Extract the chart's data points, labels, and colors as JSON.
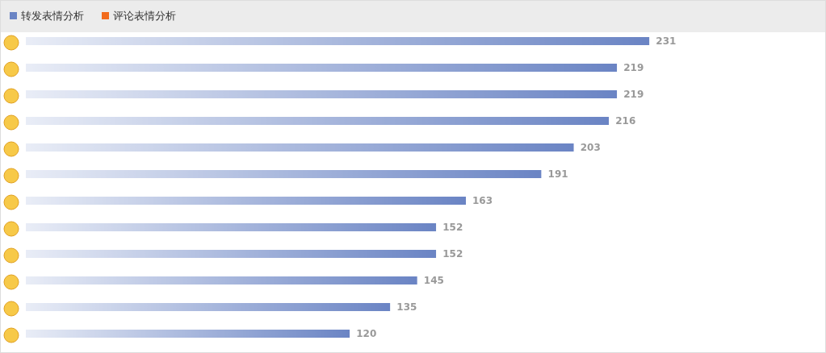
{
  "chart_data": {
    "type": "bar",
    "orientation": "horizontal",
    "categories": [
      null,
      null,
      null,
      null,
      null,
      null,
      null,
      null,
      null,
      null,
      null,
      null
    ],
    "series": [
      {
        "name": "转发表情分析",
        "color": "#6a84c4",
        "values": [
          231,
          219,
          219,
          216,
          203,
          191,
          163,
          152,
          152,
          145,
          135,
          120
        ]
      }
    ],
    "annotations": [
      "评论表情分析"
    ],
    "data_labels": true,
    "legend": "top left"
  }
}
